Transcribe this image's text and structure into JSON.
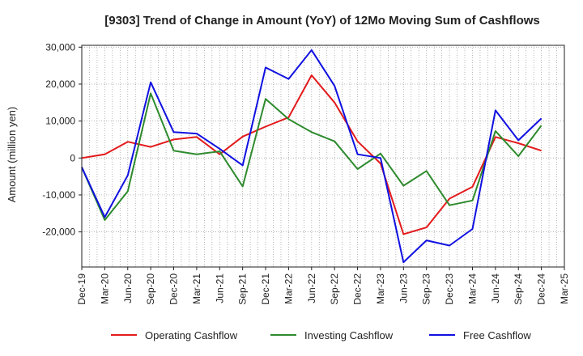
{
  "chart_data": {
    "type": "line",
    "title": "[9303]  Trend of Change in Amount (YoY) of 12Mo Moving Sum of Cashflows",
    "xlabel": "",
    "ylabel": "Amount (million yen)",
    "ylim": [
      -29500,
      30500
    ],
    "yticks": [
      30000,
      20000,
      10000,
      0,
      -10000,
      -20000
    ],
    "ytick_labels": [
      "30,000",
      "20,000",
      "10,000",
      "0",
      "-10,000",
      "-20,000"
    ],
    "grid": true,
    "legend_position": "bottom",
    "categories": [
      "Dec-19",
      "Mar-20",
      "Jun-20",
      "Sep-20",
      "Dec-20",
      "Mar-21",
      "Jun-21",
      "Sep-21",
      "Dec-21",
      "Mar-22",
      "Jun-22",
      "Sep-22",
      "Dec-22",
      "Mar-23",
      "Jun-23",
      "Sep-23",
      "Dec-23",
      "Mar-24",
      "Jun-24",
      "Sep-24",
      "Dec-24",
      "Mar-25"
    ],
    "series": [
      {
        "name": "Operating Cashflow",
        "color": "#e31a1c",
        "values": [
          0,
          1000,
          4400,
          3000,
          5000,
          5700,
          1000,
          5800,
          8500,
          11000,
          22400,
          15000,
          4500,
          -1500,
          -20600,
          -18800,
          -11000,
          -7800,
          5700,
          4000,
          2000,
          null
        ]
      },
      {
        "name": "Investing Cashflow",
        "color": "#2e8b2e",
        "values": [
          -2500,
          -16800,
          -9000,
          17500,
          2000,
          1000,
          1800,
          -7700,
          16000,
          10500,
          7000,
          4500,
          -3000,
          1200,
          -7500,
          -3500,
          -12800,
          -11500,
          7300,
          500,
          8800,
          null
        ]
      },
      {
        "name": "Free Cashflow",
        "color": "#1010e0",
        "values": [
          -2500,
          -16000,
          -4700,
          20500,
          7000,
          6600,
          2500,
          -2000,
          24500,
          21400,
          29200,
          19500,
          1000,
          0,
          -28200,
          -22300,
          -23700,
          -19200,
          12900,
          4800,
          10700,
          null
        ]
      }
    ]
  }
}
